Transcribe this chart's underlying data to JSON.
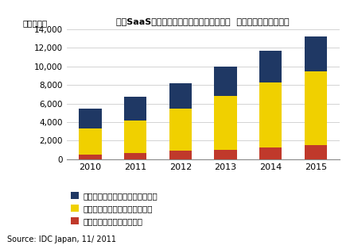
{
  "years": [
    2010,
    2011,
    2012,
    2013,
    2014,
    2015
  ],
  "red_values": [
    500,
    700,
    900,
    1000,
    1300,
    1500
  ],
  "yellow_values": [
    2800,
    3500,
    4600,
    5800,
    7000,
    8000
  ],
  "blue_values": [
    2200,
    2500,
    2700,
    3200,
    3400,
    3700
  ],
  "colors": {
    "red": "#c0392b",
    "yellow": "#f0d000",
    "blue": "#1f3864"
  },
  "title": "国内SaaS型セキュリティソフトウェア市場  セグメント別売上予測",
  "ylabel": "（百万円）",
  "ylim": [
    0,
    14000
  ],
  "yticks": [
    0,
    2000,
    4000,
    6000,
    8000,
    10000,
    12000,
    14000
  ],
  "legend_labels": [
    "アイデンティティ／アクセス管理",
    "セキュアコンテンツ／脅威管理",
    "セキュリティ／脆弱性管理"
  ],
  "source_text": "Source: IDC Japan, 11/ 2011",
  "background_color": "#ffffff",
  "grid_color": "#cccccc"
}
